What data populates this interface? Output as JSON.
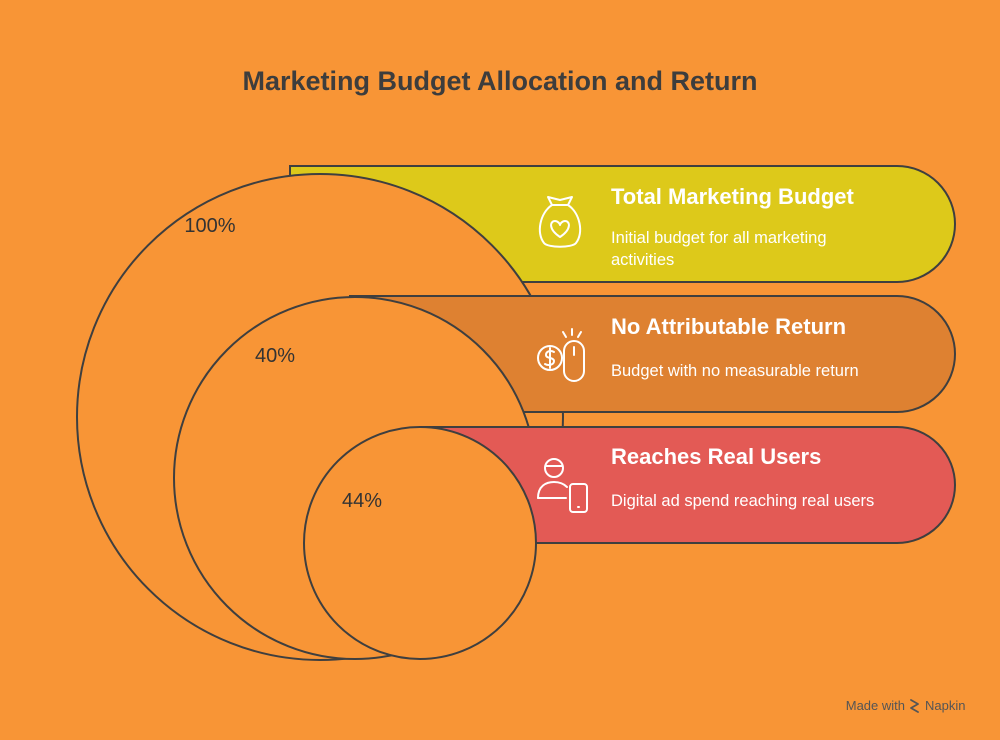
{
  "title": "Marketing Budget Allocation and Return",
  "colors": {
    "background": "#F89536",
    "band_total": "#DDC91A",
    "band_noreturn": "#DE8131",
    "band_users": "#E35A55",
    "circle_fill": "#F89536",
    "outline": "#3f3f3f"
  },
  "levels": [
    {
      "percent_label": "100%",
      "heading": "Total Marketing Budget",
      "description_lines": [
        "Initial budget for all marketing",
        "activities"
      ],
      "icon": "money-bag-heart-icon"
    },
    {
      "percent_label": "40%",
      "heading": "No Attributable Return",
      "description_lines": [
        "Budget with no measurable return"
      ],
      "icon": "dollar-click-icon"
    },
    {
      "percent_label": "44%",
      "heading": "Reaches Real Users",
      "description_lines": [
        "Digital ad spend reaching real users"
      ],
      "icon": "user-device-icon"
    }
  ],
  "footer": {
    "made_with": "Made with",
    "brand": "Napkin"
  }
}
